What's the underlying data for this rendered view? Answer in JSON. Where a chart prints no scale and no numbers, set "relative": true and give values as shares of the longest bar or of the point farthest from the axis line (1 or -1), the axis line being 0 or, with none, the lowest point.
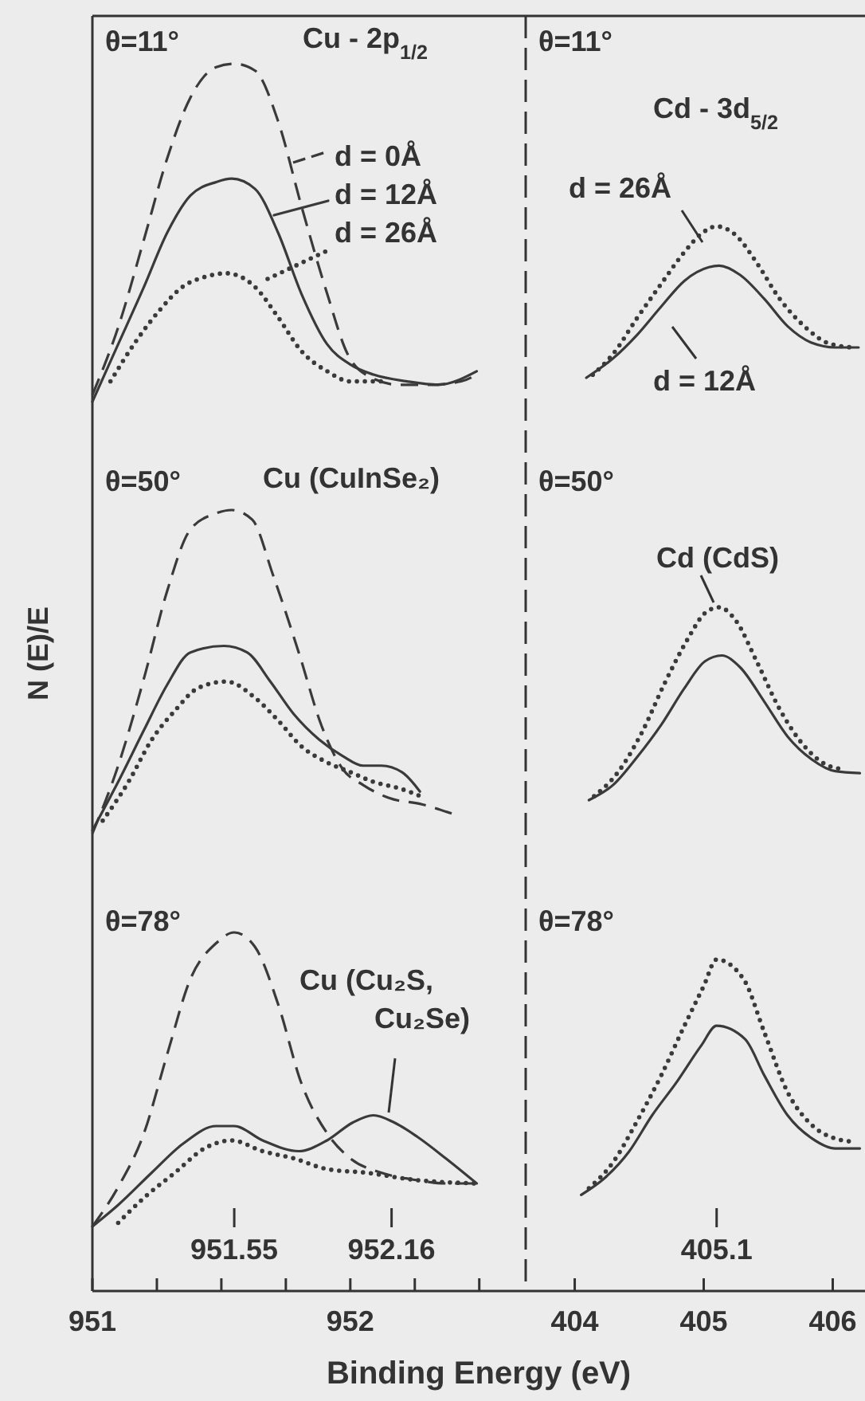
{
  "chart_data": [
    {
      "type": "line",
      "relative": true,
      "legend": "right",
      "subtitle": "θ=11°",
      "title": "Cu - 2p$_{1/2}$",
      "xlim": [
        951,
        952.68
      ],
      "tick_labels": false,
      "series": [
        {
          "name": "d = 0Å",
          "color": "#3a3a3a",
          "line_style": "dashed",
          "x": [
            951.0,
            951.1,
            951.2,
            951.29,
            951.38,
            951.48,
            951.55,
            951.63,
            951.72,
            951.81,
            951.91,
            951.99,
            952.06,
            952.19,
            952.31,
            952.43,
            952.49
          ],
          "values": [
            0.02,
            0.22,
            0.48,
            0.72,
            0.9,
            0.99,
            1.0,
            0.98,
            0.83,
            0.58,
            0.32,
            0.14,
            0.08,
            0.05,
            0.05,
            0.06,
            0.08
          ]
        },
        {
          "name": "d = 12Å",
          "color": "#3a3a3a",
          "line_style": "solid",
          "x": [
            951.0,
            951.1,
            951.2,
            951.29,
            951.38,
            951.48,
            951.54,
            951.63,
            951.72,
            951.81,
            951.91,
            952.0,
            952.09,
            952.22,
            952.34,
            952.49
          ],
          "values": [
            0,
            0.17,
            0.34,
            0.5,
            0.61,
            0.65,
            0.66,
            0.63,
            0.5,
            0.32,
            0.17,
            0.11,
            0.08,
            0.06,
            0.05,
            0.09
          ]
        },
        {
          "name": "d = 26Å",
          "color": "#3a3a3a",
          "line_style": "dotted",
          "x": [
            951.07,
            951.17,
            951.26,
            951.35,
            951.44,
            951.52,
            951.63,
            951.72,
            951.81,
            951.91,
            952.0,
            952.12
          ],
          "values": [
            0.06,
            0.18,
            0.27,
            0.34,
            0.37,
            0.38,
            0.34,
            0.25,
            0.15,
            0.09,
            0.06,
            0.06
          ]
        }
      ]
    },
    {
      "type": "line",
      "relative": true,
      "subtitle": "θ=11°",
      "title": "Cd - 3d$_{5/2}$",
      "xlim": [
        403.62,
        406.25
      ],
      "tick_labels": false,
      "series": [
        {
          "name": "d = 26Å",
          "color": "#3a3a3a",
          "line_style": "dotted",
          "x": [
            404.14,
            404.3,
            404.48,
            404.67,
            404.85,
            404.98,
            405.1,
            405.25,
            405.41,
            405.59,
            405.78,
            405.96,
            406.15
          ],
          "values": [
            0.02,
            0.16,
            0.39,
            0.62,
            0.83,
            0.95,
            1.0,
            0.94,
            0.76,
            0.52,
            0.34,
            0.23,
            0.2
          ]
        },
        {
          "name": "d = 12Å",
          "color": "#3a3a3a",
          "line_style": "solid",
          "x": [
            404.09,
            404.3,
            404.48,
            404.67,
            404.85,
            405.04,
            405.12,
            405.28,
            405.47,
            405.65,
            405.84,
            406.02,
            406.2
          ],
          "values": [
            0,
            0.13,
            0.28,
            0.47,
            0.64,
            0.73,
            0.74,
            0.68,
            0.52,
            0.34,
            0.23,
            0.2,
            0.2
          ]
        }
      ]
    },
    {
      "type": "line",
      "relative": true,
      "subtitle": "θ=50°",
      "title": "Cu (CuInSe₂)",
      "ylabel": "N (E)/E",
      "xlim": [
        951,
        952.68
      ],
      "tick_labels": false,
      "series": [
        {
          "color": "#3a3a3a",
          "line_style": "dashed",
          "x": [
            951.0,
            951.1,
            951.2,
            951.29,
            951.38,
            951.48,
            951.54,
            951.62,
            951.7,
            951.8,
            951.89,
            951.97,
            952.05,
            952.15,
            952.28,
            952.4
          ],
          "values": [
            0,
            0.21,
            0.48,
            0.75,
            0.94,
            0.99,
            1.0,
            0.97,
            0.8,
            0.56,
            0.33,
            0.2,
            0.15,
            0.11,
            0.09,
            0.06
          ]
        },
        {
          "color": "#3a3a3a",
          "line_style": "solid",
          "x": [
            951.0,
            951.1,
            951.2,
            951.29,
            951.38,
            951.51,
            951.6,
            951.69,
            951.78,
            951.88,
            951.97,
            952.05,
            952.12,
            952.2,
            952.27
          ],
          "values": [
            0.01,
            0.16,
            0.32,
            0.46,
            0.56,
            0.58,
            0.56,
            0.47,
            0.37,
            0.29,
            0.24,
            0.21,
            0.21,
            0.19,
            0.13
          ]
        },
        {
          "color": "#3a3a3a",
          "line_style": "dotted",
          "x": [
            951.04,
            951.14,
            951.23,
            951.32,
            951.41,
            951.52,
            951.63,
            951.72,
            951.81,
            951.91,
            952.0,
            952.09,
            952.19,
            952.29
          ],
          "values": [
            0.04,
            0.16,
            0.29,
            0.38,
            0.45,
            0.47,
            0.42,
            0.35,
            0.27,
            0.22,
            0.19,
            0.16,
            0.14,
            0.11
          ]
        }
      ]
    },
    {
      "type": "line",
      "relative": true,
      "subtitle": "θ=50°",
      "xlim": [
        403.62,
        406.25
      ],
      "tick_labels": false,
      "series": [
        {
          "color": "#3a3a3a",
          "line_style": "solid",
          "x": [
            404.11,
            404.3,
            404.48,
            404.67,
            404.85,
            405.01,
            405.14,
            405.28,
            405.47,
            405.65,
            405.84,
            406.02,
            406.21
          ],
          "values": [
            0,
            0.08,
            0.22,
            0.39,
            0.58,
            0.72,
            0.75,
            0.69,
            0.51,
            0.33,
            0.21,
            0.15,
            0.14
          ]
        },
        {
          "name": "Cd (CdS)",
          "color": "#3a3a3a",
          "line_style": "dotted",
          "x": [
            404.15,
            404.33,
            404.52,
            404.7,
            404.88,
            405.01,
            405.12,
            405.25,
            405.41,
            405.59,
            405.78,
            405.96,
            406.09
          ],
          "values": [
            0.02,
            0.14,
            0.35,
            0.61,
            0.84,
            0.97,
            1.0,
            0.93,
            0.72,
            0.47,
            0.28,
            0.18,
            0.16
          ]
        }
      ]
    },
    {
      "type": "line",
      "relative": true,
      "subtitle": "θ=78°",
      "xlabel": "Binding Energy (eV)",
      "xlim": [
        951,
        952.68
      ],
      "xticks": [
        951,
        {
          "value": 951.25,
          "label": null
        },
        {
          "value": 951.5,
          "label": null
        },
        {
          "value": 951.75,
          "label": null
        },
        952,
        {
          "value": 952.25,
          "label": null
        },
        {
          "value": 952.5,
          "label": null
        }
      ],
      "tick_labels": "x",
      "annotations": [
        {
          "text": "951.55",
          "x": 951.55
        },
        {
          "text": "952.16",
          "x": 952.16
        }
      ],
      "series": [
        {
          "color": "#3a3a3a",
          "line_style": "dashed",
          "x": [
            951.0,
            951.1,
            951.2,
            951.29,
            951.38,
            951.48,
            951.55,
            951.63,
            951.72,
            951.81,
            951.91,
            952.0,
            952.12,
            952.25,
            952.37,
            952.49
          ],
          "values": [
            0.18,
            0.29,
            0.44,
            0.66,
            0.87,
            0.97,
            1.0,
            0.96,
            0.8,
            0.58,
            0.44,
            0.37,
            0.33,
            0.31,
            0.3,
            0.3
          ]
        },
        {
          "name": "Cu (Cu₂S, Cu₂Se)",
          "color": "#3a3a3a",
          "line_style": "solid",
          "x": [
            951.0,
            951.1,
            951.23,
            951.35,
            951.48,
            951.55,
            951.66,
            951.8,
            951.91,
            952.01,
            952.09,
            952.17,
            952.26,
            952.37,
            952.49
          ],
          "values": [
            0.18,
            0.24,
            0.33,
            0.41,
            0.46,
            0.46,
            0.42,
            0.39,
            0.42,
            0.47,
            0.49,
            0.47,
            0.43,
            0.37,
            0.3
          ]
        },
        {
          "color": "#3a3a3a",
          "line_style": "dotted",
          "x": [
            951.1,
            951.2,
            951.32,
            951.44,
            951.54,
            951.66,
            951.78,
            951.91,
            952.06,
            952.25,
            952.49
          ],
          "values": [
            0.19,
            0.26,
            0.33,
            0.4,
            0.42,
            0.39,
            0.37,
            0.34,
            0.33,
            0.31,
            0.3
          ]
        }
      ]
    },
    {
      "type": "line",
      "relative": true,
      "subtitle": "θ=78°",
      "xlim": [
        403.62,
        406.25
      ],
      "xticks": [
        404,
        405,
        406
      ],
      "tick_labels": "x",
      "annotations": [
        {
          "text": "405.1",
          "x": 405.1
        }
      ],
      "series": [
        {
          "color": "#3a3a3a",
          "line_style": "solid",
          "x": [
            404.05,
            404.23,
            404.42,
            404.6,
            404.79,
            404.98,
            405.1,
            405.32,
            405.47,
            405.65,
            405.84,
            406.02,
            406.21
          ],
          "values": [
            0.29,
            0.34,
            0.42,
            0.53,
            0.63,
            0.74,
            0.8,
            0.76,
            0.65,
            0.53,
            0.46,
            0.43,
            0.43
          ]
        },
        {
          "color": "#3a3a3a",
          "line_style": "dotted",
          "x": [
            404.11,
            404.3,
            404.48,
            404.67,
            404.85,
            405.0,
            405.1,
            405.31,
            405.47,
            405.65,
            405.84,
            406.02,
            406.17
          ],
          "values": [
            0.31,
            0.39,
            0.51,
            0.65,
            0.8,
            0.92,
            1.0,
            0.94,
            0.78,
            0.6,
            0.5,
            0.46,
            0.45
          ]
        }
      ]
    }
  ]
}
